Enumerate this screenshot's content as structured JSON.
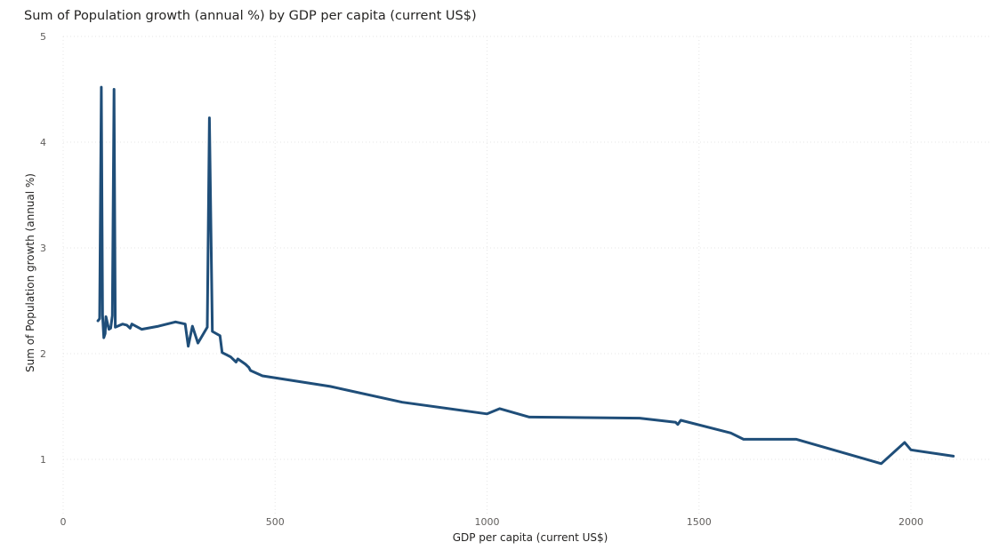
{
  "chart_data": {
    "type": "line",
    "title": "Sum of Population growth (annual %) by GDP per capita (current US$)",
    "xlabel": "GDP per capita (current US$)",
    "ylabel": "Sum of Population growth (annual %)",
    "xlim": [
      0,
      2200
    ],
    "ylim": [
      0.5,
      5
    ],
    "xticks": [
      0,
      500,
      1000,
      1500,
      2000
    ],
    "yticks": [
      1,
      2,
      3,
      4,
      5
    ],
    "grid": true,
    "legend": "none",
    "series": [
      {
        "color": "#1f4e79",
        "points": [
          [
            82,
            2.31
          ],
          [
            86,
            2.33
          ],
          [
            90,
            4.52
          ],
          [
            93,
            2.36
          ],
          [
            96,
            2.15
          ],
          [
            99,
            2.19
          ],
          [
            101,
            2.35
          ],
          [
            105,
            2.28
          ],
          [
            108,
            2.23
          ],
          [
            112,
            2.24
          ],
          [
            116,
            2.36
          ],
          [
            120,
            4.5
          ],
          [
            123,
            2.25
          ],
          [
            140,
            2.28
          ],
          [
            150,
            2.27
          ],
          [
            158,
            2.24
          ],
          [
            162,
            2.28
          ],
          [
            185,
            2.23
          ],
          [
            225,
            2.26
          ],
          [
            265,
            2.3
          ],
          [
            288,
            2.28
          ],
          [
            295,
            2.07
          ],
          [
            305,
            2.26
          ],
          [
            318,
            2.1
          ],
          [
            340,
            2.25
          ],
          [
            345,
            4.23
          ],
          [
            352,
            2.21
          ],
          [
            370,
            2.17
          ],
          [
            375,
            2.01
          ],
          [
            395,
            1.97
          ],
          [
            408,
            1.92
          ],
          [
            412,
            1.95
          ],
          [
            430,
            1.9
          ],
          [
            438,
            1.87
          ],
          [
            442,
            1.84
          ],
          [
            470,
            1.79
          ],
          [
            630,
            1.69
          ],
          [
            800,
            1.54
          ],
          [
            1000,
            1.43
          ],
          [
            1030,
            1.48
          ],
          [
            1100,
            1.4
          ],
          [
            1360,
            1.39
          ],
          [
            1445,
            1.35
          ],
          [
            1450,
            1.33
          ],
          [
            1457,
            1.37
          ],
          [
            1575,
            1.25
          ],
          [
            1605,
            1.19
          ],
          [
            1730,
            1.19
          ],
          [
            1930,
            0.96
          ],
          [
            1985,
            1.16
          ],
          [
            2000,
            1.09
          ],
          [
            2100,
            1.03
          ]
        ]
      }
    ]
  }
}
